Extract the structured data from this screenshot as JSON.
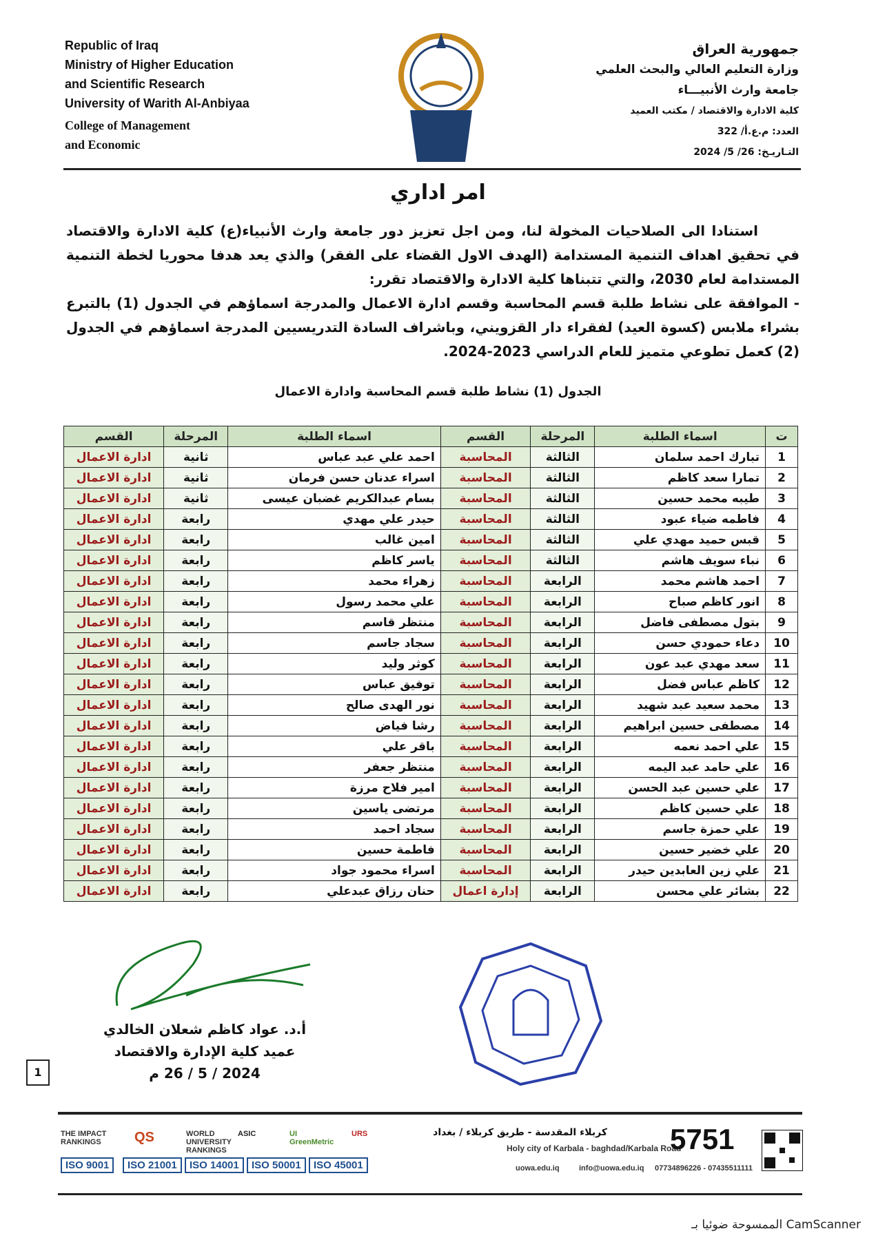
{
  "header": {
    "left": [
      "Republic of Iraq",
      "Ministry of Higher Education",
      "and Scientific Research",
      "University of Warith Al-Anbiyaa",
      "College of Management",
      "and Economic"
    ],
    "right": [
      "جمهورية العراق",
      "وزارة التعليم العالي والبحث العلمي",
      "جامعة وارث الأنبيـــاء",
      "كلية الادارة والاقتصاد / مكتب العميد",
      "العدد: م.ع.أ/ 322",
      "التـاريـخ: 26/ 5/ 2024"
    ]
  },
  "title": "امر اداري",
  "body": [
    "استنادا الى الصلاحيات المخولة لنا، ومن اجل تعزيز دور جامعة وارث الأنبياء(ع) كلية الادارة والاقتصاد في تحقيق اهداف التنمية المستدامة (الهدف الاول القضاء على الفقر) والذي يعد هدفا محوريا لخطة التنمية المستدامة لعام 2030، والتي تتبناها كلية الادارة والاقتصاد تقرر:",
    "- الموافقة على نشاط طلبة قسم المحاسبة وقسم ادارة الاعمال والمدرجة اسماؤهم في الجدول (1) بالتبرع بشراء ملابس (كسوة العيد) لفقراء دار القزويني، وباشراف السادة التدريسيين المدرجة اسماؤهم في الجدول (2) كعمل تطوعي متميز للعام الدراسي 2023-2024."
  ],
  "table": {
    "caption": "الجدول (1) نشاط طلبة قسم المحاسبة وادارة الاعمال",
    "headers": [
      "ت",
      "اسماء الطلبة",
      "المرحلة",
      "القسم",
      "اسماء الطلبة",
      "المرحلة",
      "القسم"
    ],
    "rows": [
      [
        1,
        "تبارك احمد سلمان",
        "الثالثة",
        "المحاسبة",
        "احمد علي عبد عباس",
        "ثانية",
        "ادارة الاعمال"
      ],
      [
        2,
        "تمارا سعد كاظم",
        "الثالثة",
        "المحاسبة",
        "اسراء عدنان حسن فرمان",
        "ثانية",
        "ادارة الاعمال"
      ],
      [
        3,
        "طيبه محمد حسين",
        "الثالثة",
        "المحاسبة",
        "بسام عبدالكريم غضبان عيسى",
        "ثانية",
        "ادارة الاعمال"
      ],
      [
        4,
        "فاطمه ضياء عبود",
        "الثالثة",
        "المحاسبة",
        "حيدر علي مهدي",
        "رابعة",
        "ادارة الاعمال"
      ],
      [
        5,
        "قبس حميد مهدي علي",
        "الثالثة",
        "المحاسبة",
        "امين غالب",
        "رابعة",
        "ادارة الاعمال"
      ],
      [
        6,
        "نباء سويف هاشم",
        "الثالثة",
        "المحاسبة",
        "ياسر كاظم",
        "رابعة",
        "ادارة الاعمال"
      ],
      [
        7,
        "احمد هاشم محمد",
        "الرابعة",
        "المحاسبة",
        "زهراء محمد",
        "رابعة",
        "ادارة الاعمال"
      ],
      [
        8,
        "انور كاظم صباح",
        "الرابعة",
        "المحاسبة",
        "علي محمد رسول",
        "رابعة",
        "ادارة الاعمال"
      ],
      [
        9,
        "بتول مصطفى فاضل",
        "الرابعة",
        "المحاسبة",
        "منتظر قاسم",
        "رابعة",
        "ادارة الاعمال"
      ],
      [
        10,
        "دعاء حمودي حسن",
        "الرابعة",
        "المحاسبة",
        "سجاد جاسم",
        "رابعة",
        "ادارة الاعمال"
      ],
      [
        11,
        "سعد مهدي عبد عون",
        "الرابعة",
        "المحاسبة",
        "كوثر وليد",
        "رابعة",
        "ادارة الاعمال"
      ],
      [
        12,
        "كاظم عباس فضل",
        "الرابعة",
        "المحاسبة",
        "توفيق عباس",
        "رابعة",
        "ادارة الاعمال"
      ],
      [
        13,
        "محمد سعيد عبد شهيد",
        "الرابعة",
        "المحاسبة",
        "نور الهدى صالح",
        "رابعة",
        "ادارة الاعمال"
      ],
      [
        14,
        "مصطفى حسين ابراهيم",
        "الرابعة",
        "المحاسبة",
        "رشا فياض",
        "رابعة",
        "ادارة الاعمال"
      ],
      [
        15,
        "علي احمد نعمه",
        "الرابعة",
        "المحاسبة",
        "باقر علي",
        "رابعة",
        "ادارة الاعمال"
      ],
      [
        16,
        "علي حامد عبد اليمه",
        "الرابعة",
        "المحاسبة",
        "منتظر جعفر",
        "رابعة",
        "ادارة الاعمال"
      ],
      [
        17,
        "علي حسين عبد الحسن",
        "الرابعة",
        "المحاسبة",
        "امير فلاح مرزة",
        "رابعة",
        "ادارة الاعمال"
      ],
      [
        18,
        "علي حسين كاظم",
        "الرابعة",
        "المحاسبة",
        "مرتضى ياسين",
        "رابعة",
        "ادارة الاعمال"
      ],
      [
        19,
        "علي حمزة جاسم",
        "الرابعة",
        "المحاسبة",
        "سجاد احمد",
        "رابعة",
        "ادارة الاعمال"
      ],
      [
        20,
        "علي خضير حسين",
        "الرابعة",
        "المحاسبة",
        "فاطمة حسين",
        "رابعة",
        "ادارة الاعمال"
      ],
      [
        21,
        "علي زين العابدين حيدر",
        "الرابعة",
        "المحاسبة",
        "اسراء محمود جواد",
        "رابعة",
        "ادارة الاعمال"
      ],
      [
        22,
        "بشائر علي محسن",
        "الرابعة",
        "إدارة اعمال",
        "حنان رزاق عبدعلي",
        "رابعة",
        "ادارة الاعمال"
      ]
    ]
  },
  "signature": {
    "name": "أ.د. عواد كاظم شعلان الخالدي",
    "position": "عميد كلية الإدارة والاقتصاد",
    "date": "2024 / 5 / 26 م"
  },
  "page_number": "1",
  "footer": {
    "address_ar": "كربلاء المقدسة - طريق كربلاء / بغداد",
    "address_en": "Holy city of Karbala - baghdad/Karbala Road",
    "hotline": "5751",
    "website": "uowa.edu.iq",
    "email": "info@uowa.edu.iq",
    "phones": "07734896226 - 07435511111",
    "logos": [
      "THE IMPACT RANKINGS",
      "QS",
      "WORLD UNIVERSITY RANKINGS",
      "ASIC",
      "UI GreenMetric",
      "URS"
    ],
    "iso": [
      "ISO 9001",
      "ISO 21001",
      "ISO 14001",
      "ISO 50001",
      "ISO 45001"
    ]
  },
  "scanner": "الممسوحة ضوئيا بـ CamScanner"
}
